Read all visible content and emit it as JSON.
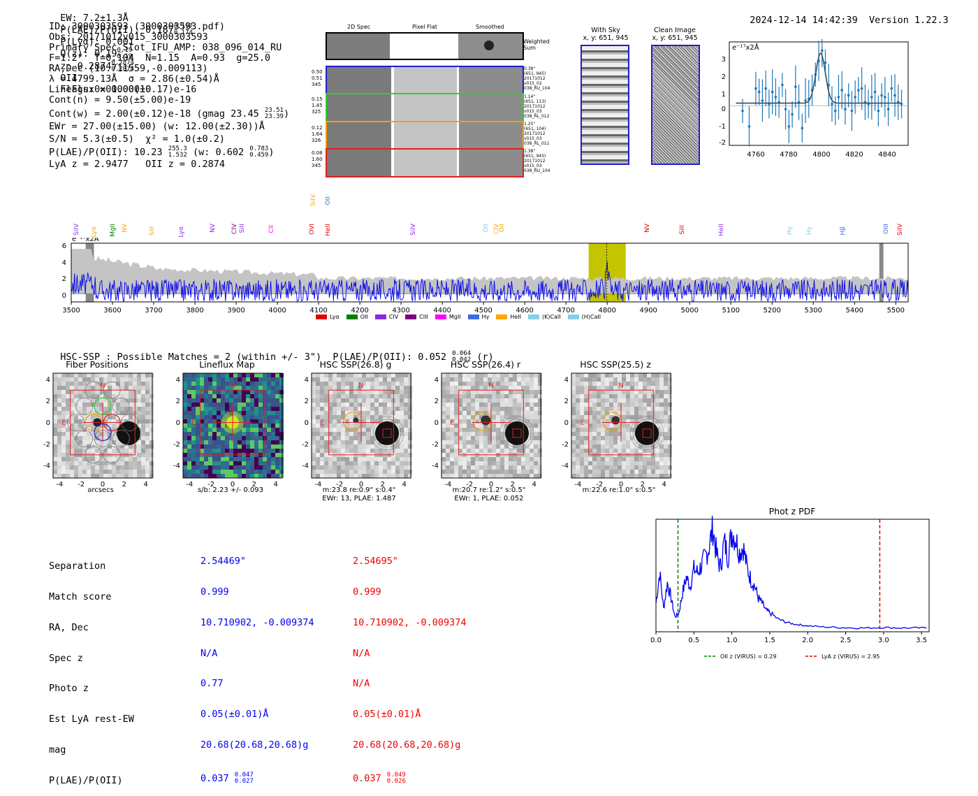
{
  "header": {
    "ew": "EW: 7.2±1.3Å",
    "plae": "P(LAE)/P(OII): 0.187",
    "plae_hi": "0.197",
    "plae_lo": "0.174",
    "plya": "P(Lyα): 0.001",
    "qz": "Q(z): 0.19",
    "qz_hi": "0.19",
    "qz_lo": "0.19",
    "z": "z: 0.2874",
    "z_hi": "0.2874",
    "z_lo": "0.2874",
    "z_line": "OII",
    "flags": "Flags:0x00000010",
    "timestamp": "2024-12-14 14:42:39",
    "version": "Version 1.22.3"
  },
  "info": {
    "lines": [
      "ID: 3000303593 (3000303593.pdf)",
      "Obs: 20171012v015_3000303593",
      "Primary Spec_Slot_IFU_AMP: 038_096_014_RU",
      "F=1.2\"  T=0.104  N=1.15  A=0.93  g=25.0",
      "RA,Dec (10.711559,-0.009113)",
      "λ = 4799.13Å  σ = 2.86(±0.54)Å",
      "LineFlux = 1.00(±0.17)e-16",
      "Cont(n) = 9.50(±5.00)e-19"
    ],
    "contw": "Cont(w) = 2.00(±0.12)e-18 (gmag 23.45",
    "contw_hi": "23.51",
    "contw_lo": "23.39",
    "ewr": "EWr = 27.00(±15.00) (w: 12.00(±2.30))Å",
    "sn": "S/N = 5.3(±0.5)  χ² = 1.0(±0.2)",
    "plae2": "P(LAE)/P(OII): 10.23",
    "plae2_hi": "255.3",
    "plae2_lo": "1.532",
    "plae2_w": "(w: 0.602",
    "plae2_w_hi": "0.783",
    "plae2_w_lo": "0.459",
    "lya_z": "LyA z = 2.9477   OII z = 0.2874"
  },
  "cutouts": {
    "col_labels": [
      "2D Spec",
      "Pixel Flat",
      "Smoothed"
    ],
    "weighted_sum": "Weighted Sum",
    "rows": [
      {
        "left": [
          "0.50",
          "0.51",
          "345"
        ],
        "right": [
          "0.38\"",
          "(651, 945)",
          "20171012",
          "v015_02",
          "038_RU_104"
        ],
        "color": "#1f1fd0"
      },
      {
        "left": [
          "0.15",
          "1.45",
          "325"
        ],
        "right": [
          "1.14\"",
          "(651, 113)",
          "20171012",
          "v015_03",
          "038_RL_012"
        ],
        "color": "#33cc33"
      },
      {
        "left": [
          "0.12",
          "1.64",
          "326"
        ],
        "right": [
          "1.25\"",
          "(651, 104)",
          "20171012",
          "v015_03",
          "038_RL_011"
        ],
        "color": "#f0a000"
      },
      {
        "left": [
          "0.08",
          "1.60",
          "345"
        ],
        "right": [
          "1.38\"",
          "(651, 945)",
          "20171012",
          "v015_03",
          "038_RU_104"
        ],
        "color": "#e02020"
      }
    ],
    "with_sky": "With Sky",
    "with_sky_xy": "x, y: 651, 945",
    "clean": "Clean Image",
    "clean_xy": "x, y: 651, 945"
  },
  "zoom_plot": {
    "unit": "e⁻¹⁷x2Å",
    "xticks": [
      "4760",
      "4780",
      "4800",
      "4820",
      "4840"
    ],
    "yticks": [
      "3",
      "2",
      "1",
      "0",
      "-1",
      "-2"
    ]
  },
  "spectrum": {
    "unit": "e⁻¹⁷x2Å",
    "yticks": [
      "6",
      "4",
      "2",
      "0"
    ],
    "xticks": [
      "3500",
      "3600",
      "3700",
      "3800",
      "3900",
      "4000",
      "4100",
      "4200",
      "4300",
      "4400",
      "4500",
      "4600",
      "4700",
      "4800",
      "4900",
      "5000",
      "5100",
      "5200",
      "5300",
      "5400",
      "5500"
    ],
    "legend": [
      {
        "label": "Lyα",
        "color": "#e00000"
      },
      {
        "label": "OII",
        "color": "#008000"
      },
      {
        "label": "CIV",
        "color": "#8a2be2"
      },
      {
        "label": "CIII",
        "color": "#800080"
      },
      {
        "label": "MgII",
        "color": "#ff00ff"
      },
      {
        "label": "Hγ",
        "color": "#4169e1"
      },
      {
        "label": "HeII",
        "color": "#ffa500"
      },
      {
        "label": "(K)CaII",
        "color": "#87ceeb"
      },
      {
        "label": "(H)CaII",
        "color": "#87ceeb"
      }
    ],
    "line_labels": [
      {
        "t": "SiIV",
        "c": "#8a2be2"
      },
      {
        "t": "Lyα",
        "c": "#ffa500"
      },
      {
        "t": "MgII",
        "c": "#008000"
      },
      {
        "t": "NV",
        "c": "#ffa500"
      },
      {
        "t": "SiII",
        "c": "#ffa500"
      },
      {
        "t": "Lyα",
        "c": "#8a2be2"
      },
      {
        "t": "NV",
        "c": "#8a2be2"
      },
      {
        "t": "CIV",
        "c": "#800080"
      },
      {
        "t": "SiII",
        "c": "#8a2be2"
      },
      {
        "t": "CII",
        "c": "#ff00ff"
      },
      {
        "t": "OVI",
        "c": "#e00000"
      },
      {
        "t": "SiIV",
        "c": "#ffa500"
      },
      {
        "t": "HeII",
        "c": "#e00000"
      },
      {
        "t": "OII",
        "c": "#4169e1"
      },
      {
        "t": "SiIV",
        "c": "#8a2be2"
      },
      {
        "t": "OII",
        "c": "#87ceeb"
      },
      {
        "t": "CIV",
        "c": "#ffa500"
      },
      {
        "t": "OII",
        "c": "#ffa500"
      },
      {
        "t": "NV",
        "c": "#e00000"
      },
      {
        "t": "SiII",
        "c": "#e00000"
      },
      {
        "t": "HeII",
        "c": "#8a2be2"
      },
      {
        "t": "Hγ",
        "c": "#87ceeb"
      },
      {
        "t": "Hγ",
        "c": "#87ceeb"
      },
      {
        "t": "Hβ",
        "c": "#4169e1"
      },
      {
        "t": "OIII",
        "c": "#4169e1"
      },
      {
        "t": "SiIV",
        "c": "#e00000"
      }
    ]
  },
  "hsc": {
    "title": "HSC-SSP : Possible Matches = 2 (within +/- 3\")  P(LAE)/P(OII): 0.052",
    "plae_hi": "0.064",
    "plae_lo": "0.042",
    "band": "(r)",
    "panels": [
      {
        "title": "Fiber Positions",
        "caption1": "arcsecs",
        "caption2": ""
      },
      {
        "title": "Lineflux Map",
        "caption1": "s/b: 2.23 +/- 0.093",
        "caption2": ""
      },
      {
        "title": "HSC SSP(26.8) g",
        "caption1": "m:23.8  re:0.9\"  s:0.4\"",
        "caption2": "EWr: 13, PLAE: 1.487"
      },
      {
        "title": "HSC SSP(26.4) r",
        "caption1": "m:20.7  re:1.2\"  s:0.5\"",
        "caption2": "EWr: 1, PLAE: 0.052"
      },
      {
        "title": "HSC SSP(25.5) z",
        "caption1": "m:22.6  re:1.0\"  s:0.5\"",
        "caption2": ""
      }
    ],
    "axis_ticks": [
      "4",
      "2",
      "0",
      "-2",
      "-4"
    ],
    "xaxis_ticks": [
      "-4",
      "-2",
      "0",
      "2",
      "4"
    ],
    "n_label": "N",
    "e_label": "E"
  },
  "matches": {
    "labels": [
      "Separation",
      "Match score",
      "RA, Dec",
      "Spec z",
      "Photo z",
      "Est LyA rest-EW",
      "mag",
      "P(LAE)/P(OII)"
    ],
    "m1": {
      "color": "#0000ee",
      "vals": [
        "2.54469\"",
        "0.999",
        "10.710902, -0.009374",
        "N/A",
        "0.77",
        "0.05(±0.01)Å",
        "20.68(20.68,20.68)g",
        "0.037"
      ],
      "plae_hi": "0.047",
      "plae_lo": "0.027"
    },
    "m2": {
      "color": "#ee0000",
      "vals": [
        "2.54695\"",
        "0.999",
        "10.710902, -0.009374",
        "N/A",
        "N/A",
        "0.05(±0.01)Å",
        "20.68(20.68,20.68)g",
        "0.037"
      ],
      "plae_hi": "0.049",
      "plae_lo": "0.026"
    }
  },
  "chart_data": [
    {
      "type": "line",
      "title": "Phot z PDF",
      "xlabel": "",
      "ylabel": "",
      "xlim": [
        0.0,
        3.6
      ],
      "xticks": [
        "0.0",
        "0.5",
        "1.0",
        "1.5",
        "2.0",
        "2.5",
        "3.0",
        "3.5"
      ],
      "vlines": [
        {
          "x": 0.29,
          "label": "OII z (VIRUS) = 0.29",
          "color": "#008000"
        },
        {
          "x": 2.95,
          "label": "LyA z (VIRUS) = 2.95",
          "color": "#e00000"
        }
      ],
      "x": [
        0.0,
        0.05,
        0.1,
        0.15,
        0.2,
        0.25,
        0.3,
        0.35,
        0.4,
        0.45,
        0.5,
        0.55,
        0.6,
        0.65,
        0.7,
        0.75,
        0.8,
        0.85,
        0.9,
        0.95,
        1.0,
        1.05,
        1.1,
        1.15,
        1.2,
        1.25,
        1.3,
        1.35,
        1.4,
        1.45,
        1.5,
        1.6,
        1.7,
        1.8,
        1.9,
        2.0,
        2.2,
        2.4,
        2.6,
        2.8,
        3.0,
        3.2,
        3.4,
        3.6
      ],
      "y": [
        0.25,
        0.55,
        0.2,
        0.45,
        0.3,
        0.12,
        0.15,
        0.35,
        0.5,
        0.42,
        0.58,
        0.55,
        0.62,
        0.7,
        0.8,
        0.98,
        0.72,
        0.6,
        0.85,
        0.7,
        0.95,
        0.88,
        0.75,
        0.8,
        0.6,
        0.48,
        0.42,
        0.3,
        0.25,
        0.18,
        0.16,
        0.1,
        0.07,
        0.05,
        0.04,
        0.03,
        0.02,
        0.015,
        0.01,
        0.01,
        0.015,
        0.01,
        0.01,
        0.01
      ]
    },
    {
      "type": "line",
      "title": "",
      "xlabel": "",
      "ylabel": "e⁻¹⁷x2Å",
      "xlim": [
        3500,
        5530
      ],
      "ylim": [
        -1,
        6.2
      ],
      "series": [
        {
          "name": "flux",
          "color": "#0000ee"
        },
        {
          "name": "error",
          "color": "#bbbbbb"
        }
      ],
      "x": [
        3500,
        3550,
        3600,
        3650,
        3700,
        3750,
        3800,
        3850,
        3900,
        3950,
        4000,
        4100,
        4200,
        4300,
        4400,
        4500,
        4600,
        4700,
        4760,
        4780,
        4790,
        4800,
        4810,
        4820,
        4840,
        4900,
        5000,
        5100,
        5200,
        5300,
        5400,
        5500,
        5530
      ],
      "y": [
        0.5,
        5.2,
        3.0,
        1.5,
        1.0,
        0.8,
        0.9,
        0.7,
        0.6,
        1.0,
        0.5,
        0.8,
        0.6,
        0.4,
        0.7,
        0.5,
        0.6,
        0.4,
        0.8,
        0.6,
        1.5,
        2.7,
        1.5,
        0.6,
        0.5,
        0.3,
        0.5,
        0.4,
        0.6,
        0.3,
        0.5,
        0.6,
        0.8
      ]
    },
    {
      "type": "scatter",
      "title": "",
      "ylabel": "e⁻¹⁷x2Å",
      "xlim": [
        4744,
        4852
      ],
      "ylim": [
        -2.3,
        3.7
      ],
      "x": [
        4752,
        4756,
        4760,
        4762,
        4764,
        4766,
        4768,
        4770,
        4772,
        4774,
        4776,
        4778,
        4780,
        4782,
        4784,
        4786,
        4788,
        4790,
        4792,
        4794,
        4796,
        4798,
        4800,
        4802,
        4804,
        4806,
        4808,
        4810,
        4812,
        4814,
        4816,
        4818,
        4820,
        4822,
        4824,
        4826,
        4828,
        4830,
        4832,
        4834,
        4836,
        4838,
        4840,
        4842,
        4844,
        4846,
        4848
      ],
      "y": [
        -0.3,
        -1.2,
        1.0,
        0.8,
        0.3,
        1.0,
        0.1,
        0.8,
        0.5,
        0.2,
        1.2,
        -0.2,
        -1.2,
        -0.5,
        1.1,
        0.2,
        -1.3,
        0.3,
        0.4,
        0.9,
        1.8,
        2.6,
        3.2,
        2.5,
        1.2,
        0.1,
        -0.3,
        0.5,
        0.9,
        -0.2,
        0.6,
        -0.3,
        0.5,
        0.9,
        1.0,
        0.2,
        0.1,
        0.5,
        0.8,
        -0.3,
        0.6,
        0.5,
        -0.2,
        1.0,
        0.6,
        0.2,
        0.1
      ],
      "fit": {
        "center": 4799.13,
        "sigma": 2.86,
        "amp": 2.9,
        "baseline": 0.15
      }
    }
  ]
}
